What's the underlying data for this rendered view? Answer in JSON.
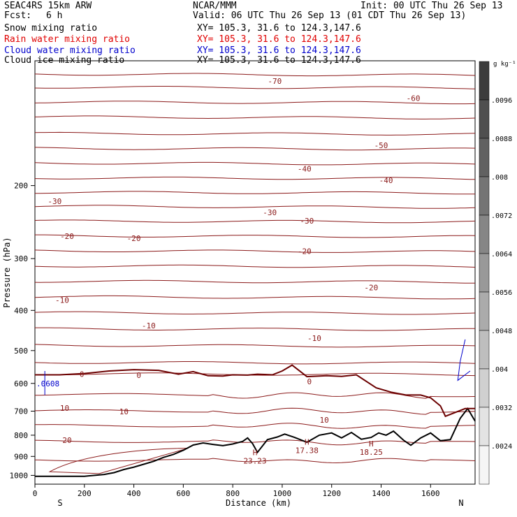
{
  "header": {
    "model": "SEAC4RS 15km ARW",
    "org": "NCAR/MMM",
    "init": "Init: 00 UTC Thu 26 Sep 13",
    "fcst_label": "Fcst:",
    "fcst_value": "6 h",
    "valid": "Valid: 06 UTC Thu 26 Sep 13 (01 CDT Thu 26 Sep 13)"
  },
  "fields": [
    {
      "name": "Snow mixing ratio",
      "xy": "XY= 105.3, 31.6 to 124.3,147.6",
      "color": "#000000"
    },
    {
      "name": "Rain water mixing ratio",
      "xy": "XY= 105.3, 31.6 to 124.3,147.6",
      "color": "#e00000"
    },
    {
      "name": "Cloud water mixing ratio",
      "xy": "XY= 105.3, 31.6 to 124.3,147.6",
      "color": "#0000cc"
    },
    {
      "name": "Cloud ice mixing ratio",
      "xy": "XY= 105.3, 31.6 to 124.3,147.6",
      "color": "#000000"
    }
  ],
  "chart_data": {
    "type": "line",
    "xlabel": "Distance (km)",
    "ylabel": "Pressure (hPa)",
    "xlim": [
      0,
      1780
    ],
    "ylim": [
      1050,
      100
    ],
    "y_scale": "log",
    "x_ticks": [
      0,
      200,
      400,
      600,
      800,
      1000,
      1200,
      1400,
      1600
    ],
    "y_ticks": [
      200,
      300,
      400,
      500,
      600,
      700,
      800,
      900,
      1000
    ],
    "x_end_labels": {
      "left": "S",
      "right": "N"
    },
    "colorbar": {
      "unit": "g kg⁻¹",
      "labels": [
        ".0096",
        ".0088",
        ".008",
        ".0072",
        ".0064",
        ".0056",
        ".0048",
        ".004",
        ".0032",
        ".0024"
      ]
    },
    "isotherm_labels": [
      {
        "text": "-70",
        "x": 970,
        "p": 112
      },
      {
        "text": "-60",
        "x": 1530,
        "p": 123
      },
      {
        "text": "-50",
        "x": 1400,
        "p": 160
      },
      {
        "text": "-40",
        "x": 1090,
        "p": 182
      },
      {
        "text": "-40",
        "x": 1420,
        "p": 194
      },
      {
        "text": "-30",
        "x": 80,
        "p": 218
      },
      {
        "text": "-30",
        "x": 950,
        "p": 232
      },
      {
        "text": "-30",
        "x": 1100,
        "p": 243
      },
      {
        "text": "-20",
        "x": 130,
        "p": 265
      },
      {
        "text": "-20",
        "x": 400,
        "p": 268
      },
      {
        "text": "-20",
        "x": 1090,
        "p": 288
      },
      {
        "text": "-20",
        "x": 1360,
        "p": 352
      },
      {
        "text": "-10",
        "x": 110,
        "p": 378
      },
      {
        "text": "-10",
        "x": 460,
        "p": 435
      },
      {
        "text": "-10",
        "x": 1130,
        "p": 467
      },
      {
        "text": "0",
        "x": 190,
        "p": 570
      },
      {
        "text": "0",
        "x": 420,
        "p": 573
      },
      {
        "text": "0",
        "x": 1110,
        "p": 594
      },
      {
        "text": "10",
        "x": 120,
        "p": 688
      },
      {
        "text": "10",
        "x": 360,
        "p": 702
      },
      {
        "text": "10",
        "x": 1170,
        "p": 735
      },
      {
        "text": "20",
        "x": 130,
        "p": 822
      }
    ],
    "extrema": [
      {
        "label": "H",
        "value": "23.23",
        "x": 890,
        "p": 880
      },
      {
        "label": "H",
        "value": "17.38",
        "x": 1100,
        "p": 830
      },
      {
        "label": "H",
        "value": "18.25",
        "x": 1360,
        "p": 838
      }
    ],
    "cloud_water_value": ".0608",
    "series": [
      {
        "name": "terrain",
        "x": [
          0,
          100,
          200,
          280,
          320,
          360,
          400,
          440,
          480,
          520,
          560,
          600,
          640,
          680,
          720,
          760,
          800,
          840,
          860,
          880,
          900,
          940,
          980,
          1010,
          1050,
          1100,
          1150,
          1200,
          1240,
          1280,
          1320,
          1360,
          1390,
          1420,
          1450,
          1490,
          1520,
          1560,
          1600,
          1640,
          1680,
          1720,
          1750,
          1780
        ],
        "values": [
          1005,
          1005,
          1005,
          995,
          985,
          968,
          955,
          940,
          925,
          905,
          890,
          870,
          845,
          835,
          842,
          848,
          840,
          828,
          812,
          838,
          880,
          820,
          808,
          795,
          810,
          832,
          800,
          790,
          812,
          788,
          818,
          810,
          790,
          800,
          782,
          822,
          846,
          812,
          790,
          825,
          820,
          728,
          690,
          740
        ]
      },
      {
        "name": "freezing-level",
        "x": [
          0,
          100,
          200,
          300,
          400,
          500,
          580,
          640,
          700,
          760,
          800,
          860,
          900,
          960,
          1000,
          1040,
          1100,
          1180,
          1240,
          1300,
          1380,
          1440,
          1500,
          1560,
          1600,
          1640,
          1660,
          1700,
          1740,
          1780
        ],
        "values": [
          572,
          572,
          568,
          560,
          556,
          558,
          570,
          562,
          575,
          576,
          572,
          573,
          570,
          572,
          560,
          542,
          578,
          575,
          577,
          572,
          615,
          630,
          640,
          640,
          650,
          680,
          720,
          705,
          690,
          690
        ]
      }
    ]
  }
}
